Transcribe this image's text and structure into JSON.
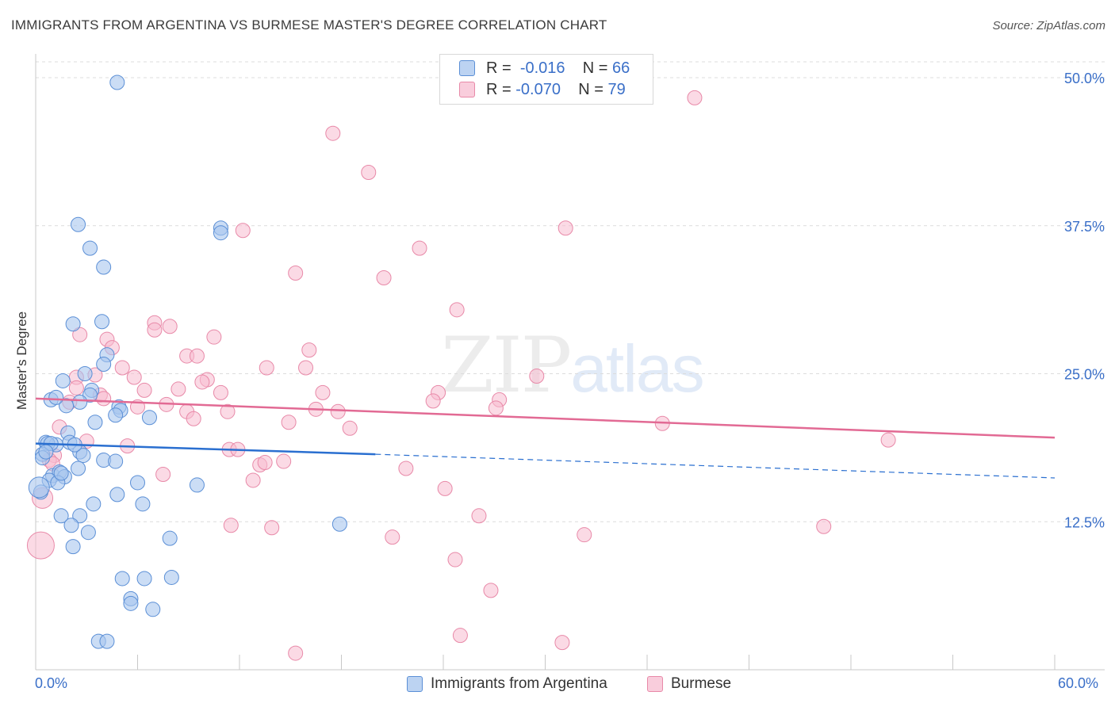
{
  "header": {
    "title": "IMMIGRANTS FROM ARGENTINA VS BURMESE MASTER'S DEGREE CORRELATION CHART",
    "source": "Source: ZipAtlas.com"
  },
  "legend_box": {
    "rows": [
      {
        "r_label": "R =",
        "r_value": "-0.016",
        "n_label": "N =",
        "n_value": "66"
      },
      {
        "r_label": "R =",
        "r_value": "-0.070",
        "n_label": "N =",
        "n_value": "79"
      }
    ]
  },
  "watermark": {
    "zip": "ZIP",
    "atlas": "atlas"
  },
  "colors": {
    "argentina_fill": "#a9c6ef",
    "argentina_stroke": "#5b8fd6",
    "argentina_line": "#2a6fd0",
    "burmese_fill": "#f7bcd0",
    "burmese_stroke": "#e889a8",
    "burmese_line": "#e26a94",
    "grid": "#dcdcdc",
    "tick_label": "#3a6fc8"
  },
  "chart_data": {
    "type": "scatter",
    "title": "IMMIGRANTS FROM ARGENTINA VS BURMESE MASTER'S DEGREE CORRELATION CHART",
    "xlabel": "",
    "ylabel": "Master's Degree",
    "xlim": [
      0,
      60
    ],
    "ylim": [
      0,
      50
    ],
    "x_tick_labels": [
      "0.0%",
      "60.0%"
    ],
    "y_ticks": [
      12.5,
      25.0,
      37.5,
      50.0
    ],
    "y_tick_labels": [
      "12.5%",
      "25.0%",
      "37.5%",
      "50.0%"
    ],
    "grid": true,
    "series": [
      {
        "name": "Immigrants from Argentina",
        "R": -0.016,
        "N": 66,
        "trend": {
          "x_solid": [
            0,
            20
          ],
          "y_solid": [
            19.1,
            18.2
          ],
          "x_dashed": [
            20,
            60
          ],
          "y_dashed": [
            18.2,
            16.2
          ]
        },
        "points": [
          [
            4.8,
            49.6
          ],
          [
            2.5,
            37.6
          ],
          [
            10.9,
            37.3
          ],
          [
            10.9,
            36.9
          ],
          [
            3.2,
            35.6
          ],
          [
            4.0,
            34.0
          ],
          [
            2.2,
            29.2
          ],
          [
            3.9,
            29.4
          ],
          [
            4.2,
            26.6
          ],
          [
            4.0,
            25.8
          ],
          [
            2.9,
            25.0
          ],
          [
            1.6,
            24.4
          ],
          [
            3.3,
            23.6
          ],
          [
            3.2,
            23.2
          ],
          [
            2.6,
            22.6
          ],
          [
            1.8,
            22.3
          ],
          [
            0.9,
            22.8
          ],
          [
            1.2,
            23.0
          ],
          [
            4.9,
            22.2
          ],
          [
            5.0,
            21.9
          ],
          [
            4.7,
            21.5
          ],
          [
            6.7,
            21.3
          ],
          [
            3.5,
            20.9
          ],
          [
            0.6,
            19.2
          ],
          [
            1.2,
            19.0
          ],
          [
            0.7,
            19.1
          ],
          [
            2.6,
            18.4
          ],
          [
            2.8,
            18.1
          ],
          [
            1.9,
            20.0
          ],
          [
            2.0,
            19.2
          ],
          [
            0.4,
            18.2
          ],
          [
            0.4,
            17.9
          ],
          [
            1.0,
            16.4
          ],
          [
            1.4,
            16.7
          ],
          [
            1.7,
            16.3
          ],
          [
            2.5,
            17.0
          ],
          [
            4.0,
            17.7
          ],
          [
            4.7,
            17.6
          ],
          [
            0.8,
            16.0
          ],
          [
            1.3,
            15.8
          ],
          [
            6.0,
            15.8
          ],
          [
            9.5,
            15.6
          ],
          [
            0.3,
            15.0
          ],
          [
            4.8,
            14.8
          ],
          [
            3.4,
            14.0
          ],
          [
            6.3,
            14.0
          ],
          [
            1.5,
            13.0
          ],
          [
            2.6,
            13.0
          ],
          [
            2.1,
            12.2
          ],
          [
            3.1,
            11.6
          ],
          [
            7.9,
            11.1
          ],
          [
            2.2,
            10.4
          ],
          [
            17.9,
            12.3
          ],
          [
            5.1,
            7.7
          ],
          [
            6.4,
            7.7
          ],
          [
            8.0,
            7.8
          ],
          [
            5.6,
            6.0
          ],
          [
            5.6,
            5.6
          ],
          [
            6.9,
            5.1
          ],
          [
            3.7,
            2.4
          ],
          [
            4.2,
            2.4
          ],
          [
            0.2,
            15.4
          ],
          [
            0.9,
            19.1
          ],
          [
            1.5,
            16.6
          ],
          [
            2.3,
            19.0
          ],
          [
            0.6,
            18.4
          ]
        ]
      },
      {
        "name": "Burmese",
        "R": -0.07,
        "N": 79,
        "trend": {
          "x": [
            0,
            60
          ],
          "y": [
            22.9,
            19.6
          ]
        },
        "points": [
          [
            38.8,
            48.3
          ],
          [
            17.5,
            45.3
          ],
          [
            19.6,
            42.0
          ],
          [
            12.2,
            37.1
          ],
          [
            31.2,
            37.3
          ],
          [
            22.6,
            35.6
          ],
          [
            15.3,
            33.5
          ],
          [
            20.5,
            33.1
          ],
          [
            24.8,
            30.4
          ],
          [
            7.0,
            29.3
          ],
          [
            7.9,
            29.0
          ],
          [
            7.0,
            28.7
          ],
          [
            2.6,
            28.3
          ],
          [
            10.5,
            28.1
          ],
          [
            4.2,
            27.9
          ],
          [
            4.5,
            27.2
          ],
          [
            16.1,
            27.0
          ],
          [
            8.9,
            26.5
          ],
          [
            9.5,
            26.5
          ],
          [
            5.1,
            25.5
          ],
          [
            13.6,
            25.5
          ],
          [
            15.9,
            25.5
          ],
          [
            3.5,
            24.9
          ],
          [
            2.4,
            24.7
          ],
          [
            5.8,
            24.7
          ],
          [
            10.1,
            24.5
          ],
          [
            9.8,
            24.3
          ],
          [
            29.5,
            24.8
          ],
          [
            2.4,
            23.8
          ],
          [
            3.8,
            23.2
          ],
          [
            6.4,
            23.6
          ],
          [
            8.4,
            23.7
          ],
          [
            10.9,
            23.4
          ],
          [
            16.9,
            23.4
          ],
          [
            23.7,
            23.4
          ],
          [
            27.3,
            22.8
          ],
          [
            2.0,
            22.6
          ],
          [
            6.0,
            22.2
          ],
          [
            7.7,
            22.4
          ],
          [
            23.4,
            22.7
          ],
          [
            8.9,
            21.8
          ],
          [
            11.3,
            21.8
          ],
          [
            16.5,
            22.0
          ],
          [
            17.8,
            21.8
          ],
          [
            27.1,
            22.1
          ],
          [
            9.3,
            21.2
          ],
          [
            14.9,
            20.9
          ],
          [
            18.5,
            20.4
          ],
          [
            36.9,
            20.8
          ],
          [
            1.4,
            20.5
          ],
          [
            50.2,
            19.4
          ],
          [
            3.0,
            19.3
          ],
          [
            5.4,
            18.9
          ],
          [
            11.4,
            18.6
          ],
          [
            11.9,
            18.6
          ],
          [
            1.1,
            18.1
          ],
          [
            0.8,
            17.7
          ],
          [
            13.2,
            17.3
          ],
          [
            14.6,
            17.6
          ],
          [
            13.5,
            17.5
          ],
          [
            21.8,
            17.0
          ],
          [
            12.8,
            16.0
          ],
          [
            7.5,
            16.5
          ],
          [
            24.1,
            15.3
          ],
          [
            0.4,
            14.5
          ],
          [
            26.1,
            13.0
          ],
          [
            11.5,
            12.2
          ],
          [
            13.9,
            12.0
          ],
          [
            46.4,
            12.1
          ],
          [
            21.0,
            11.2
          ],
          [
            32.3,
            11.4
          ],
          [
            24.7,
            9.3
          ],
          [
            26.8,
            6.7
          ],
          [
            0.3,
            10.5
          ],
          [
            25.0,
            2.9
          ],
          [
            31.0,
            2.3
          ],
          [
            15.3,
            1.4
          ],
          [
            1.0,
            17.4
          ],
          [
            4.0,
            22.9
          ]
        ]
      }
    ]
  },
  "bottom_legend": {
    "items": [
      {
        "label": "Immigrants from Argentina"
      },
      {
        "label": "Burmese"
      }
    ]
  }
}
